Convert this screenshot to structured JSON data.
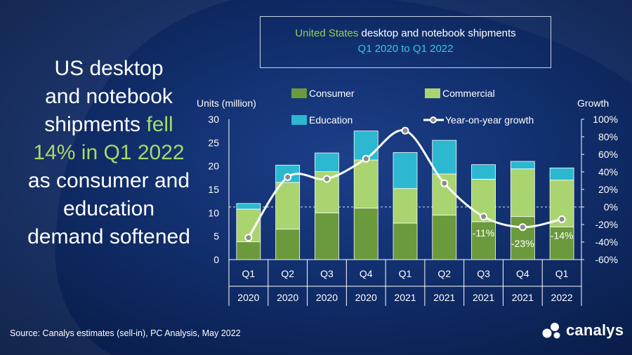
{
  "headline": {
    "line1": "US desktop",
    "line2": "and notebook",
    "line3_pre": "shipments ",
    "line3_hl": "fell",
    "line4": "14% in Q1 2022",
    "line5": "as consumer and",
    "line6": "education",
    "line7": "demand softened"
  },
  "title_box": {
    "country": "United States",
    "rest": " desktop and notebook shipments",
    "period": "Q1 2020 to Q1 2022"
  },
  "source": "Source: Canalys estimates (sell-in), PC Analysis, May 2022",
  "brand": "canalys",
  "colors": {
    "consumer": "#6a9a3c",
    "commercial": "#a9d46f",
    "education": "#2bb8d0",
    "growth_line": "#ffffff",
    "growth_marker": "#8c8c8c"
  },
  "chart_data": {
    "type": "bar",
    "stacked": true,
    "ylabel": "Units (million)",
    "y2label": "Growth",
    "ylim": [
      0,
      30
    ],
    "yticks": [
      "0",
      "5",
      "10",
      "15",
      "20",
      "25",
      "30"
    ],
    "y2lim": [
      -60,
      100
    ],
    "y2ticks": [
      "-60%",
      "-40%",
      "-20%",
      "0%",
      "20%",
      "40%",
      "60%",
      "80%",
      "100%"
    ],
    "quarters": [
      "Q1",
      "Q2",
      "Q3",
      "Q4",
      "Q1",
      "Q2",
      "Q3",
      "Q4",
      "Q1"
    ],
    "years": [
      "2020",
      "2020",
      "2020",
      "2020",
      "2021",
      "2021",
      "2021",
      "2021",
      "2022"
    ],
    "series": [
      {
        "name": "Consumer",
        "values": [
          3.8,
          6.5,
          10.0,
          11.0,
          7.8,
          9.5,
          8.1,
          9.2,
          7.0
        ]
      },
      {
        "name": "Commercial",
        "values": [
          7.0,
          10.0,
          8.8,
          10.3,
          7.4,
          8.8,
          9.1,
          10.2,
          10.0
        ]
      },
      {
        "name": "Education",
        "values": [
          1.2,
          3.7,
          4.0,
          6.2,
          7.7,
          7.2,
          3.1,
          1.6,
          2.6
        ]
      }
    ],
    "growth": {
      "name": "Year-on-year growth",
      "values": [
        -35,
        34,
        32,
        55,
        87,
        27,
        -11,
        -23,
        -14
      ],
      "labels": [
        "",
        "",
        "",
        "",
        "",
        "",
        "-11%",
        "-23%",
        "-14%"
      ]
    },
    "legend_position": "top"
  }
}
